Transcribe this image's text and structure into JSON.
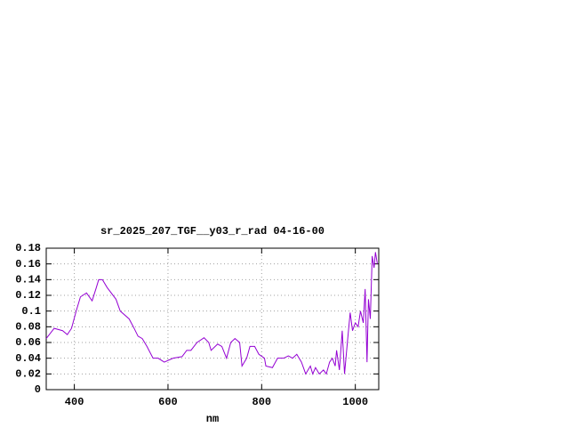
{
  "chart_data": {
    "type": "line",
    "title": "sr_2025_207_TGF__y03_r_rad 04-16-00",
    "x_label": "nm",
    "x": [
      340,
      357,
      375,
      385,
      394,
      404,
      413,
      426,
      438,
      447,
      452,
      460,
      470,
      489,
      498,
      517,
      526,
      536,
      545,
      555,
      568,
      579,
      592,
      611,
      630,
      640,
      649,
      662,
      677,
      687,
      692,
      706,
      715,
      725,
      734,
      743,
      753,
      758,
      768,
      775,
      785,
      794,
      806,
      809,
      823,
      834,
      847,
      857,
      866,
      875,
      885,
      894,
      904,
      909,
      915,
      923,
      932,
      938,
      945,
      951,
      957,
      960,
      966,
      972,
      977,
      983,
      989,
      994,
      1000,
      1006,
      1011,
      1017,
      1021,
      1025,
      1028,
      1032,
      1036,
      1040,
      1043,
      1047
    ],
    "series": [
      {
        "name": "sr_2025_207_TGF__y03_r_rad",
        "color": "#9400d3",
        "values": [
          0.065,
          0.078,
          0.075,
          0.07,
          0.078,
          0.1,
          0.118,
          0.123,
          0.113,
          0.13,
          0.14,
          0.14,
          0.13,
          0.115,
          0.1,
          0.09,
          0.08,
          0.068,
          0.065,
          0.055,
          0.04,
          0.04,
          0.035,
          0.04,
          0.042,
          0.05,
          0.05,
          0.06,
          0.066,
          0.06,
          0.05,
          0.058,
          0.055,
          0.04,
          0.06,
          0.065,
          0.06,
          0.03,
          0.04,
          0.055,
          0.055,
          0.045,
          0.04,
          0.03,
          0.028,
          0.04,
          0.04,
          0.043,
          0.04,
          0.045,
          0.035,
          0.02,
          0.03,
          0.02,
          0.028,
          0.02,
          0.025,
          0.02,
          0.035,
          0.04,
          0.03,
          0.05,
          0.025,
          0.075,
          0.02,
          0.06,
          0.098,
          0.075,
          0.085,
          0.08,
          0.1,
          0.085,
          0.128,
          0.035,
          0.115,
          0.09,
          0.17,
          0.155,
          0.175,
          0.16
        ]
      }
    ],
    "xlim": [
      340,
      1050
    ],
    "ylim": [
      0,
      0.18
    ],
    "xticks": [
      400,
      600,
      800,
      1000
    ],
    "yticks": [
      0,
      0.02,
      0.04,
      0.06,
      0.08,
      0.1,
      0.12,
      0.14,
      0.16,
      0.18
    ],
    "grid": true
  }
}
